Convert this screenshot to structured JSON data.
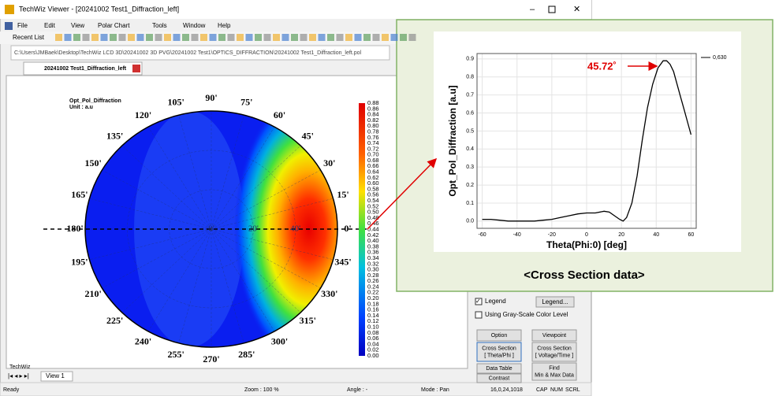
{
  "window": {
    "title": "TechWiz Viewer - [20241002 Test1_Diffraction_left]",
    "menu": [
      "File",
      "Edit",
      "View",
      "Polar Chart",
      "Tools",
      "Window",
      "Help"
    ],
    "toolbar_label": "Recent List",
    "path": "C:\\Users\\JMBaek\\Desktop\\TechWiz LCD 3D\\20241002 3D PVG\\20241002 Test1\\OPTICS_DIFFRACTION\\20241002 Test1_Diffraction_left.pol",
    "tab": "20241002 Test1_Diffraction_left",
    "view_tab": "View 1",
    "techwiz_label": "TechWiz"
  },
  "polar": {
    "title": "Opt_Pol_Diffraction",
    "unit": "Unit : a.u",
    "angle_labels": [
      "0'",
      "15'",
      "30'",
      "45'",
      "60'",
      "75'",
      "90'",
      "105'",
      "120'",
      "135'",
      "150'",
      "165'",
      "180'",
      "195'",
      "210'",
      "225'",
      "240'",
      "255'",
      "270'",
      "285'",
      "300'",
      "315'",
      "330'",
      "345'"
    ],
    "radial_labels": [
      "0'",
      "20'",
      "40'"
    ],
    "colorbar_labels": [
      "0.88",
      "0.86",
      "0.84",
      "0.82",
      "0.80",
      "0.78",
      "0.76",
      "0.74",
      "0.72",
      "0.70",
      "0.68",
      "0.66",
      "0.64",
      "0.62",
      "0.60",
      "0.58",
      "0.56",
      "0.54",
      "0.52",
      "0.50",
      "0.48",
      "0.46",
      "0.44",
      "0.42",
      "0.40",
      "0.38",
      "0.36",
      "0.34",
      "0.32",
      "0.30",
      "0.28",
      "0.26",
      "0.24",
      "0.22",
      "0.20",
      "0.18",
      "0.16",
      "0.14",
      "0.12",
      "0.10",
      "0.08",
      "0.06",
      "0.04",
      "0.02",
      "0.00"
    ]
  },
  "panel": {
    "legend_checkbox": "Legend",
    "legend_button": "Legend...",
    "grayscale": "Using Gray-Scale Color Level",
    "buttons": [
      [
        "Option"
      ],
      [
        "Viewpoint"
      ],
      [
        "Cross Section",
        "[ Theta/Phi ]"
      ],
      [
        "Cross Section",
        "[ Voltage/Time ]"
      ],
      [
        "Data Table"
      ],
      [
        "Find",
        "Min & Max Data"
      ],
      [
        "Contrast"
      ]
    ]
  },
  "status": [
    "Ready",
    "Zoom : 100 %",
    "Angle : -",
    "Mode : Pan",
    "16,0,24,1018",
    "CAP",
    "NUM",
    "SCRL"
  ],
  "chart_data": {
    "type": "line",
    "x_label": "Theta(Phi:0) [deg]",
    "y_label": "Opt_Pol_Diffraction [a.u]",
    "annotation": "45.72˚",
    "caption": "<Cross Section data>",
    "x": [
      -60,
      -55,
      -50,
      -45,
      -40,
      -35,
      -30,
      -25,
      -20,
      -15,
      -10,
      -5,
      0,
      5,
      10,
      13,
      16,
      19,
      21,
      23,
      26,
      29,
      32,
      35,
      38,
      41,
      44,
      46,
      48,
      50,
      52,
      54,
      56,
      58,
      60
    ],
    "series": [
      {
        "name": "0,630",
        "color": "#000000",
        "values": [
          0.01,
          0.01,
          0.005,
          0.0,
          0.0,
          0.0,
          0.0,
          0.005,
          0.01,
          0.02,
          0.03,
          0.04,
          0.045,
          0.045,
          0.055,
          0.05,
          0.03,
          0.01,
          0.0,
          0.02,
          0.1,
          0.25,
          0.45,
          0.63,
          0.76,
          0.85,
          0.89,
          0.89,
          0.87,
          0.83,
          0.76,
          0.69,
          0.62,
          0.55,
          0.48
        ]
      }
    ],
    "xlim": [
      -63,
      63
    ],
    "ylim": [
      -0.04,
      0.93
    ],
    "xticks": [
      -60,
      -40,
      -20,
      0,
      20,
      40,
      60
    ],
    "yticks": [
      {
        "value": 0,
        "label": "0.0"
      },
      0.1,
      0.2,
      0.3,
      0.4,
      0.5,
      0.6,
      0.7,
      0.8,
      0.9
    ],
    "grid": true
  }
}
